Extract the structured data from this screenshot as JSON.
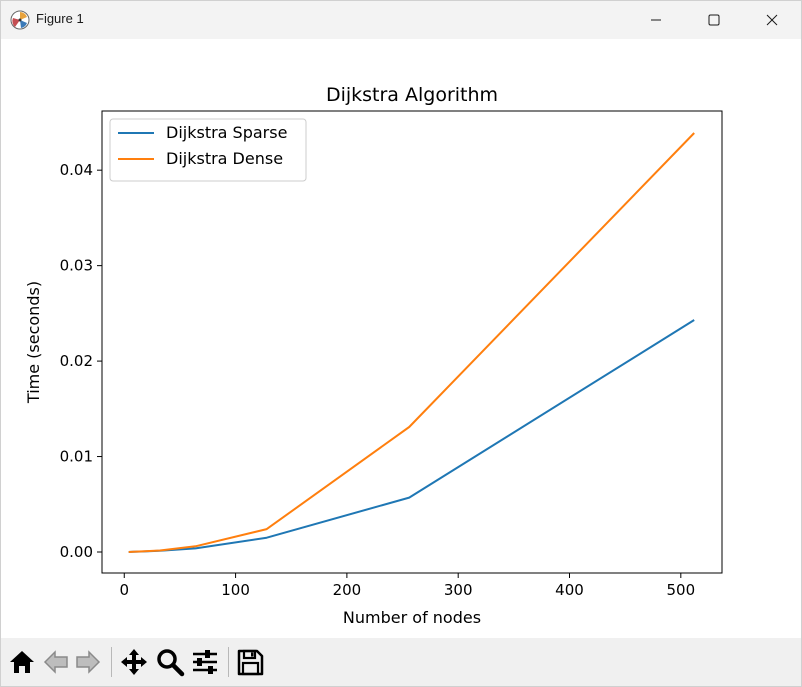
{
  "window": {
    "title": "Figure 1"
  },
  "toolbar": {
    "buttons": [
      {
        "name": "home",
        "icon": "home-icon"
      },
      {
        "name": "back",
        "icon": "back-arrow-icon"
      },
      {
        "name": "forward",
        "icon": "forward-arrow-icon"
      },
      {
        "name": "pan",
        "icon": "move-icon"
      },
      {
        "name": "zoom",
        "icon": "zoom-icon"
      },
      {
        "name": "configure",
        "icon": "sliders-icon"
      },
      {
        "name": "save",
        "icon": "save-icon"
      }
    ]
  },
  "chart_data": {
    "type": "line",
    "title": "Dijkstra Algorithm",
    "xlabel": "Number of nodes",
    "ylabel": "Time (seconds)",
    "xlim": [
      -20,
      537
    ],
    "ylim": [
      -0.0022,
      0.0462
    ],
    "xticks": [
      0,
      100,
      200,
      300,
      400,
      500
    ],
    "xtick_labels": [
      "0",
      "100",
      "200",
      "300",
      "400",
      "500"
    ],
    "yticks": [
      0.0,
      0.01,
      0.02,
      0.03,
      0.04
    ],
    "ytick_labels": [
      "0.00",
      "0.01",
      "0.02",
      "0.03",
      "0.04"
    ],
    "grid": false,
    "legend_position": "upper-left",
    "series": [
      {
        "name": "Dijkstra Sparse",
        "color": "#1f77b4",
        "x": [
          4,
          8,
          16,
          32,
          64,
          128,
          256,
          512
        ],
        "y": [
          0.0,
          2e-05,
          5e-05,
          0.00013,
          0.00038,
          0.0015,
          0.0057,
          0.0243
        ]
      },
      {
        "name": "Dijkstra Dense",
        "color": "#ff7f0e",
        "x": [
          4,
          8,
          16,
          32,
          64,
          128,
          256,
          512
        ],
        "y": [
          0.0,
          2e-05,
          6e-05,
          0.00016,
          0.0006,
          0.0024,
          0.0131,
          0.0439
        ]
      }
    ]
  }
}
